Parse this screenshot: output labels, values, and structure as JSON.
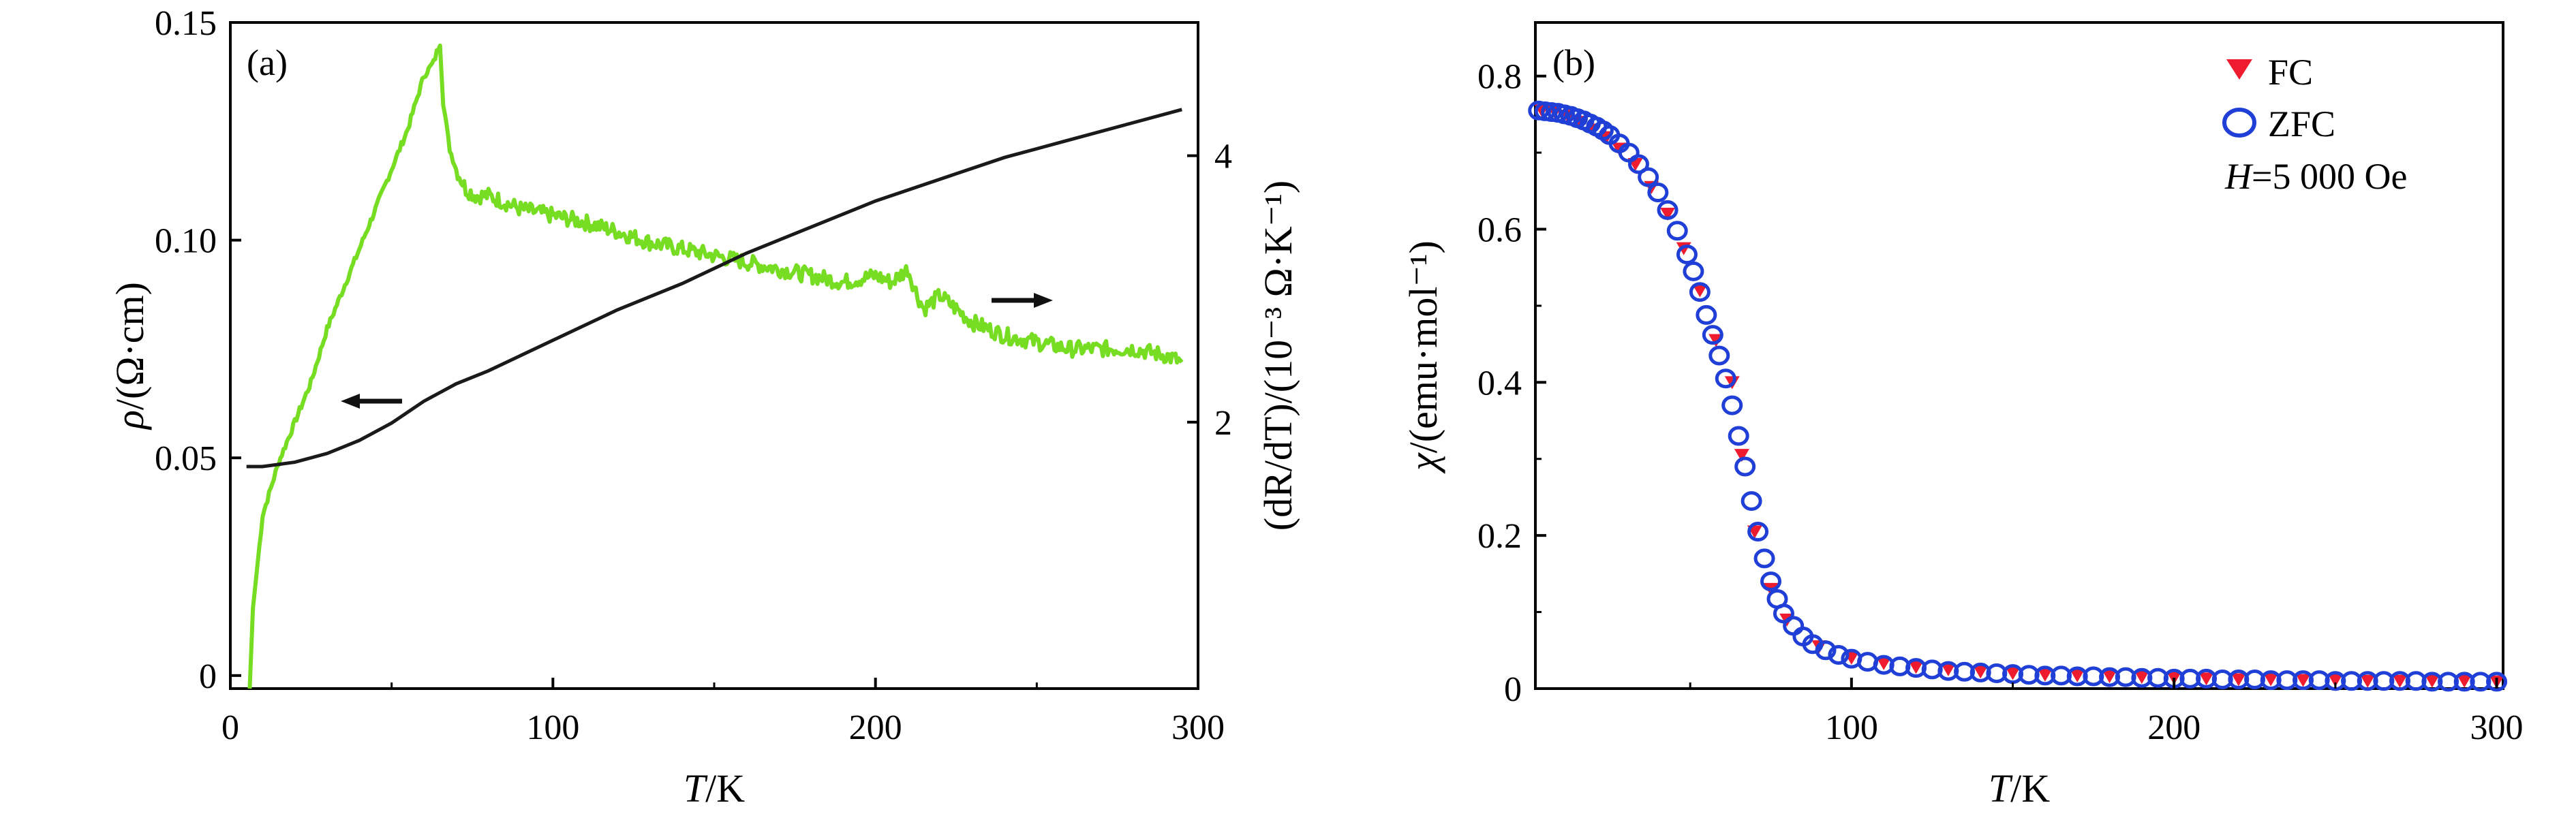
{
  "colors": {
    "resistivity": "#1a1a1a",
    "derivative": "#77dd22",
    "fc": "#ee1c2e",
    "zfc": "#1f3fd6"
  },
  "chart_data": [
    {
      "panel": "(a)",
      "type": "line",
      "xlabel_var": "T",
      "xlabel_unit": "/K",
      "ylabel_left_var": "ρ",
      "ylabel_left_unit": "/(Ω·cm)",
      "ylabel_right": "(dR/dT)/(10⁻³ Ω·K⁻¹)",
      "xlim": [
        0,
        300
      ],
      "ylim_left": [
        -0.003,
        0.15
      ],
      "ylim_right": [
        0,
        5
      ],
      "x_ticks": [
        "0",
        "100",
        "200",
        "300"
      ],
      "y_left_ticks": [
        "0",
        "0.05",
        "0.10",
        "0.15"
      ],
      "y_right_ticks": [
        "2",
        "4"
      ],
      "grid": false,
      "annotations": [
        "left arrow on ρ curve near T=40 K",
        "right arrow on dR/dT curve near T=250 K"
      ],
      "series": [
        {
          "axis": "left",
          "color_key": "resistivity",
          "x": [
            5,
            10,
            20,
            30,
            40,
            50,
            60,
            70,
            80,
            100,
            120,
            140,
            160,
            180,
            200,
            220,
            240,
            260,
            280,
            295
          ],
          "y": [
            0.048,
            0.048,
            0.049,
            0.051,
            0.054,
            0.058,
            0.063,
            0.067,
            0.07,
            0.077,
            0.084,
            0.09,
            0.097,
            0.103,
            0.109,
            0.114,
            0.119,
            0.123,
            0.127,
            0.13
          ]
        },
        {
          "axis": "right",
          "color_key": "derivative",
          "x": [
            6,
            7,
            10,
            15,
            20,
            25,
            30,
            35,
            40,
            45,
            50,
            55,
            60,
            63,
            65,
            66,
            68,
            70,
            73,
            76,
            80,
            90,
            100,
            110,
            120,
            130,
            140,
            150,
            160,
            170,
            180,
            190,
            200,
            205,
            210,
            213,
            215,
            220,
            230,
            240,
            250,
            260,
            270,
            280,
            290,
            295
          ],
          "y": [
            0.0,
            0.6,
            1.3,
            1.7,
            2.0,
            2.3,
            2.7,
            3.0,
            3.3,
            3.6,
            3.9,
            4.2,
            4.6,
            4.7,
            4.85,
            4.4,
            4.05,
            3.9,
            3.75,
            3.7,
            3.7,
            3.6,
            3.55,
            3.5,
            3.43,
            3.35,
            3.3,
            3.25,
            3.2,
            3.15,
            3.1,
            3.05,
            3.1,
            3.05,
            3.15,
            2.95,
            2.85,
            2.95,
            2.75,
            2.65,
            2.6,
            2.55,
            2.55,
            2.55,
            2.5,
            2.45
          ]
        }
      ]
    },
    {
      "panel": "(b)",
      "type": "scatter",
      "xlabel_var": "T",
      "xlabel_unit": "/K",
      "ylabel_var": "χ",
      "ylabel_unit": "/(emu·mol⁻¹)",
      "xlim": [
        2,
        302
      ],
      "ylim": [
        0,
        0.87
      ],
      "x_ticks": [
        "100",
        "200",
        "300"
      ],
      "y_ticks": [
        "0",
        "0.2",
        "0.4",
        "0.6",
        "0.8"
      ],
      "grid": false,
      "legend_position": "top-right",
      "legend": {
        "fc_label": "FC",
        "zfc_label": "ZFC",
        "field_var": "H",
        "field_value": "=5 000 Oe"
      },
      "series": [
        {
          "name": "FC",
          "marker": "triangle-down",
          "color_key": "fc",
          "x": [
            4,
            8,
            12,
            16,
            20,
            24,
            28,
            33,
            38,
            43,
            48,
            53,
            58,
            63,
            66,
            70,
            75,
            80,
            90,
            100,
            110,
            120,
            130,
            140,
            150,
            160,
            170,
            180,
            190,
            200,
            210,
            220,
            230,
            240,
            250,
            260,
            270,
            280,
            290,
            300
          ],
          "y": [
            0.755,
            0.753,
            0.748,
            0.74,
            0.73,
            0.72,
            0.705,
            0.685,
            0.655,
            0.62,
            0.575,
            0.52,
            0.455,
            0.4,
            0.305,
            0.205,
            0.13,
            0.09,
            0.055,
            0.04,
            0.033,
            0.028,
            0.025,
            0.022,
            0.02,
            0.018,
            0.017,
            0.016,
            0.015,
            0.014,
            0.013,
            0.012,
            0.012,
            0.011,
            0.011,
            0.01,
            0.01,
            0.01,
            0.01,
            0.009
          ]
        },
        {
          "name": "ZFC",
          "marker": "circle-open",
          "color_key": "zfc",
          "x": [
            3,
            5,
            7,
            9,
            11,
            13,
            15,
            17,
            19,
            21,
            23,
            25,
            28,
            31,
            34,
            37,
            40,
            43,
            46,
            49,
            51,
            53,
            55,
            57,
            59,
            61,
            63,
            65,
            67,
            69,
            71,
            73,
            75,
            77,
            79,
            82,
            85,
            88,
            92,
            96,
            100,
            105,
            110,
            115,
            120,
            125,
            130,
            135,
            140,
            145,
            150,
            155,
            160,
            165,
            170,
            175,
            180,
            185,
            190,
            195,
            200,
            205,
            210,
            215,
            220,
            225,
            230,
            235,
            240,
            245,
            250,
            255,
            260,
            265,
            270,
            275,
            280,
            285,
            290,
            295,
            300
          ],
          "y": [
            0.755,
            0.754,
            0.753,
            0.752,
            0.75,
            0.748,
            0.745,
            0.742,
            0.738,
            0.734,
            0.729,
            0.723,
            0.712,
            0.7,
            0.685,
            0.668,
            0.648,
            0.625,
            0.598,
            0.567,
            0.545,
            0.518,
            0.488,
            0.462,
            0.435,
            0.405,
            0.37,
            0.33,
            0.29,
            0.245,
            0.205,
            0.17,
            0.14,
            0.117,
            0.098,
            0.082,
            0.068,
            0.058,
            0.05,
            0.044,
            0.039,
            0.035,
            0.031,
            0.029,
            0.027,
            0.025,
            0.023,
            0.022,
            0.021,
            0.02,
            0.019,
            0.018,
            0.017,
            0.017,
            0.016,
            0.016,
            0.015,
            0.015,
            0.014,
            0.014,
            0.013,
            0.013,
            0.013,
            0.012,
            0.012,
            0.012,
            0.011,
            0.011,
            0.011,
            0.011,
            0.01,
            0.01,
            0.01,
            0.01,
            0.01,
            0.01,
            0.009,
            0.009,
            0.009,
            0.009,
            0.009
          ]
        }
      ]
    }
  ]
}
